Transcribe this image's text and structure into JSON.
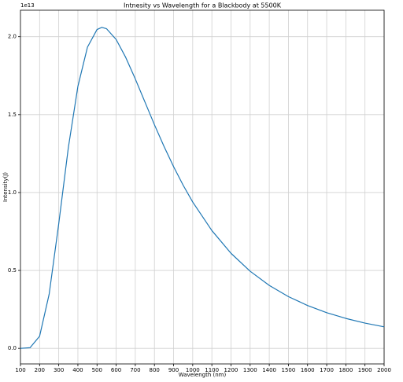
{
  "chart_data": {
    "type": "line",
    "title": "Intnesity vs Wavelength for a Blackbody at 5500K",
    "x_label": "Wavelength (nm)",
    "y_label": "Intensity(J)",
    "y_offset_text": "1e13",
    "x": [
      100,
      150,
      200,
      250,
      300,
      350,
      400,
      450,
      500,
      525,
      550,
      600,
      650,
      700,
      750,
      800,
      850,
      900,
      950,
      1000,
      1100,
      1200,
      1300,
      1400,
      1500,
      1600,
      1700,
      1800,
      1900,
      2000
    ],
    "series": [
      {
        "name": "Intensity",
        "color": "#1f77b4",
        "values": [
          0.0,
          0.004,
          0.078,
          0.348,
          0.8,
          1.287,
          1.681,
          1.933,
          2.046,
          2.06,
          2.051,
          1.982,
          1.867,
          1.729,
          1.582,
          1.435,
          1.296,
          1.166,
          1.047,
          0.939,
          0.756,
          0.61,
          0.495,
          0.404,
          0.332,
          0.275,
          0.229,
          0.192,
          0.162,
          0.138
        ]
      }
    ],
    "xlim": [
      100,
      2000
    ],
    "ylim": [
      -0.1,
      2.17
    ],
    "xticks": [
      100,
      200,
      300,
      400,
      500,
      600,
      700,
      800,
      900,
      1000,
      1100,
      1200,
      1300,
      1400,
      1500,
      1600,
      1700,
      1800,
      1900,
      2000
    ],
    "yticks": [
      {
        "value": 0,
        "label": "0.0"
      },
      0.5,
      {
        "value": 1,
        "label": "1.0"
      },
      1.5,
      {
        "value": 2,
        "label": "2.0"
      }
    ],
    "grid": true
  }
}
